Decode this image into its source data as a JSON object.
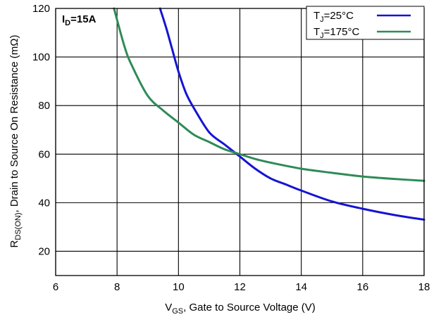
{
  "chart_data": {
    "type": "line",
    "title": "",
    "xlabel": {
      "main": "V",
      "sub": "GS",
      "rest": ", Gate to Source Voltage (V)"
    },
    "ylabel": {
      "main": "R",
      "sub": "DS(ON)",
      "rest": ", Drain to Source On Resistance (mΩ)"
    },
    "xlim": [
      6,
      18
    ],
    "ylim": [
      10,
      120
    ],
    "x_ticks": [
      "6",
      "8",
      "10",
      "12",
      "14",
      "16",
      "18"
    ],
    "y_ticks": [
      "20",
      "40",
      "60",
      "80",
      "100",
      "120"
    ],
    "grid": true,
    "legend_position": "top-right",
    "annotation": {
      "main": "I",
      "sub": "D",
      "rest": "=15A"
    },
    "series": [
      {
        "name": "T_J=25°C",
        "label": {
          "main": "T",
          "sub": "J",
          "rest": "=25°C"
        },
        "color": "#1414d4",
        "x": [
          9.4,
          9.6,
          9.8,
          10.0,
          10.25,
          10.5,
          11.0,
          11.5,
          12.0,
          12.5,
          13.0,
          13.5,
          14.0,
          15.0,
          16.0,
          17.0,
          18.0
        ],
        "y": [
          120,
          112,
          103,
          94,
          85,
          79,
          69,
          64,
          59,
          54,
          50,
          47.5,
          45,
          40.5,
          37.5,
          35,
          33
        ]
      },
      {
        "name": "T_J=175°C",
        "label": {
          "main": "T",
          "sub": "J",
          "rest": "=175°C"
        },
        "color": "#2e8b57",
        "x": [
          7.9,
          8.25,
          8.5,
          9.0,
          9.5,
          10.0,
          10.5,
          11.0,
          11.5,
          12.0,
          12.5,
          13.0,
          14.0,
          15.0,
          16.0,
          17.0,
          18.0
        ],
        "y": [
          120,
          104,
          96,
          84,
          78,
          73,
          68,
          65,
          62,
          60,
          58,
          56.5,
          54,
          52.3,
          50.8,
          49.8,
          49
        ]
      }
    ]
  }
}
